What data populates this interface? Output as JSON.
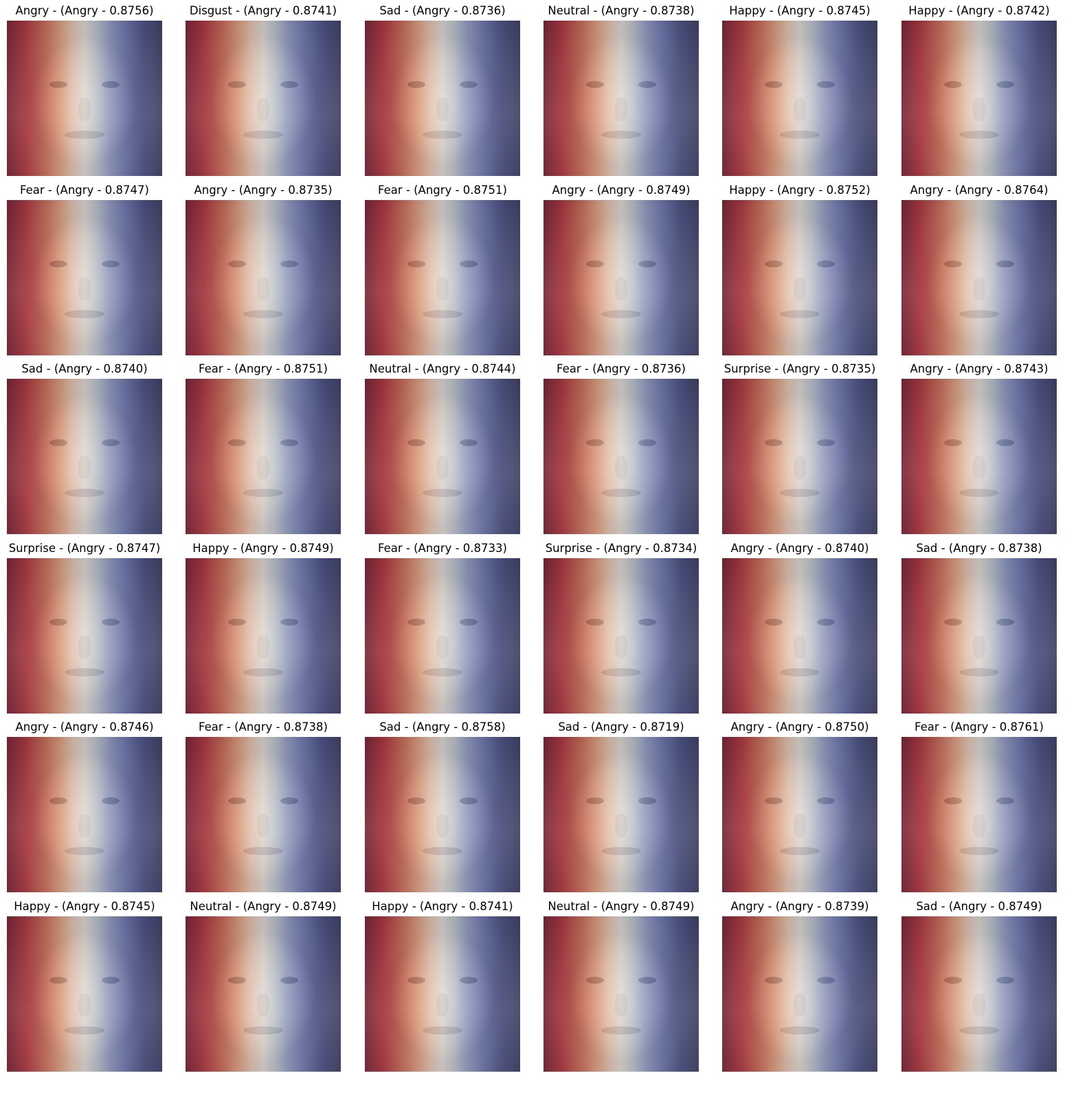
{
  "panels": [
    {
      "label": "Angry - (Angry - 0.8756)"
    },
    {
      "label": "Disgust - (Angry - 0.8741)"
    },
    {
      "label": "Sad - (Angry - 0.8736)"
    },
    {
      "label": "Neutral - (Angry - 0.8738)"
    },
    {
      "label": "Happy - (Angry - 0.8745)"
    },
    {
      "label": "Happy - (Angry - 0.8742)"
    },
    {
      "label": "Fear - (Angry - 0.8747)"
    },
    {
      "label": "Angry - (Angry - 0.8735)"
    },
    {
      "label": "Fear - (Angry - 0.8751)"
    },
    {
      "label": "Angry - (Angry - 0.8749)"
    },
    {
      "label": "Happy - (Angry - 0.8752)"
    },
    {
      "label": "Angry - (Angry - 0.8764)"
    },
    {
      "label": "Sad - (Angry - 0.8740)"
    },
    {
      "label": "Fear - (Angry - 0.8751)"
    },
    {
      "label": "Neutral - (Angry - 0.8744)"
    },
    {
      "label": "Fear - (Angry - 0.8736)"
    },
    {
      "label": "Surprise - (Angry - 0.8735)"
    },
    {
      "label": "Angry - (Angry - 0.8743)"
    },
    {
      "label": "Surprise - (Angry - 0.8747)"
    },
    {
      "label": "Happy - (Angry - 0.8749)"
    },
    {
      "label": "Fear - (Angry - 0.8733)"
    },
    {
      "label": "Surprise - (Angry - 0.8734)"
    },
    {
      "label": "Angry - (Angry - 0.8740)"
    },
    {
      "label": "Sad - (Angry - 0.8738)"
    },
    {
      "label": "Angry - (Angry - 0.8746)"
    },
    {
      "label": "Fear - (Angry - 0.8738)"
    },
    {
      "label": "Sad - (Angry - 0.8758)"
    },
    {
      "label": "Sad - (Angry - 0.8719)"
    },
    {
      "label": "Angry - (Angry - 0.8750)"
    },
    {
      "label": "Fear - (Angry - 0.8761)"
    },
    {
      "label": "Happy - (Angry - 0.8745)"
    },
    {
      "label": "Neutral - (Angry - 0.8749)"
    },
    {
      "label": "Happy - (Angry - 0.8741)"
    },
    {
      "label": "Neutral - (Angry - 0.8749)"
    },
    {
      "label": "Angry - (Angry - 0.8739)"
    },
    {
      "label": "Sad - (Angry - 0.8749)"
    }
  ],
  "overlay_colormap": "coolwarm-red-to-blue"
}
